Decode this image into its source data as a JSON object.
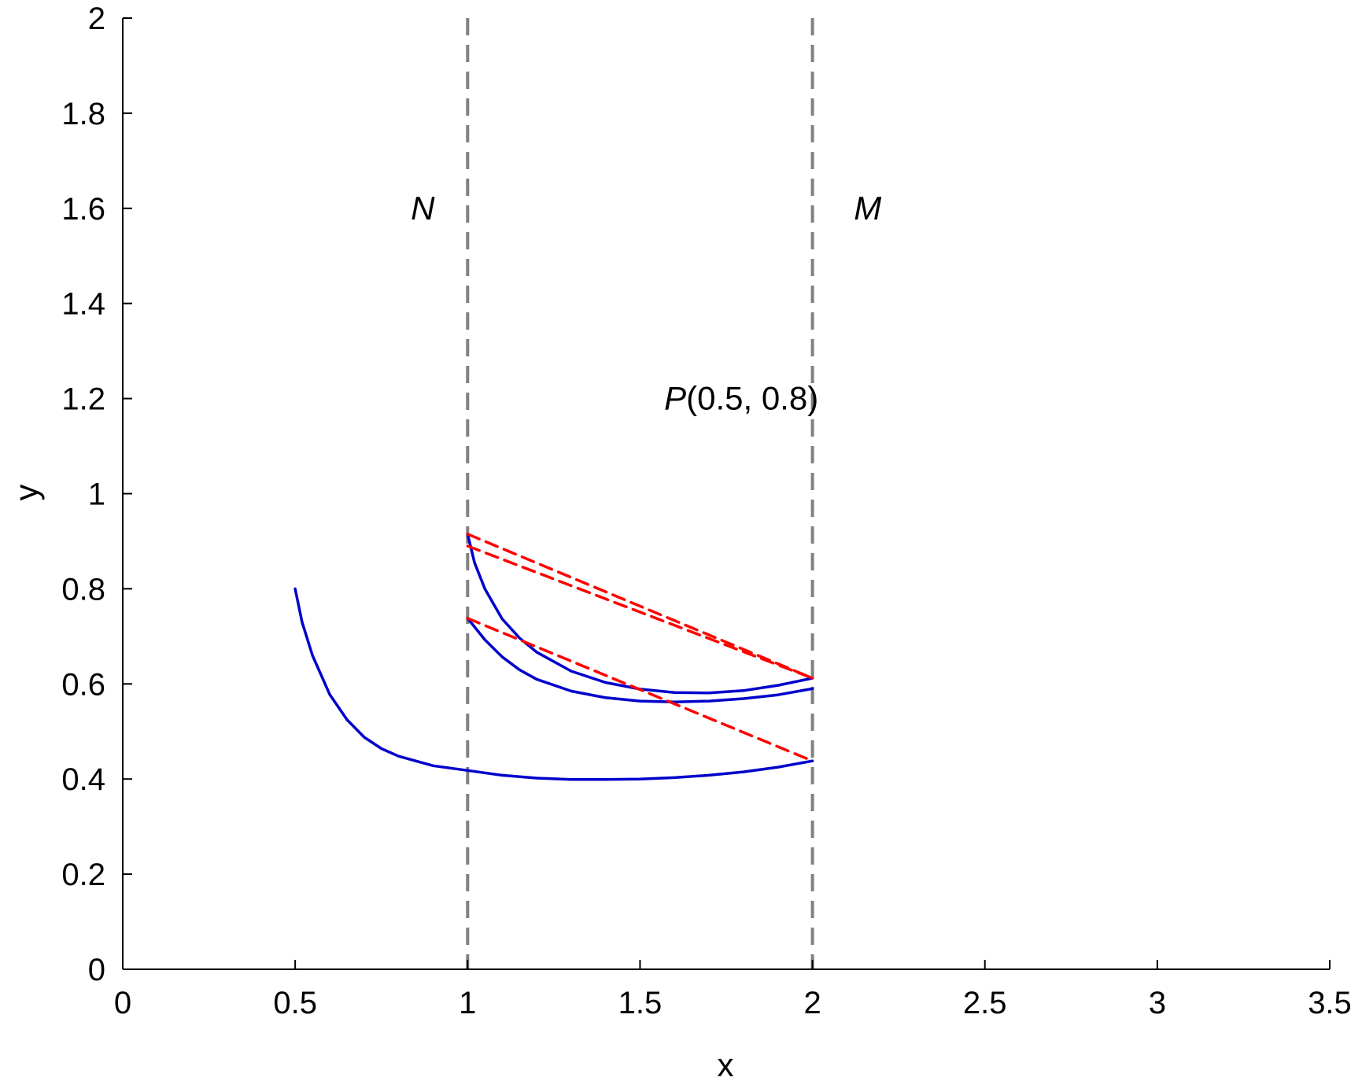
{
  "chart_data": {
    "type": "line",
    "title": "",
    "xlabel": "x",
    "ylabel": "y",
    "xlim": [
      0,
      3.5
    ],
    "ylim": [
      0,
      2
    ],
    "grid": false,
    "xticks": [
      "0",
      "0.5",
      "1",
      "1.5",
      "2",
      "2.5",
      "3",
      "3.5"
    ],
    "yticks": [
      "0",
      "0.2",
      "0.4",
      "0.6",
      "0.8",
      "1",
      "1.2",
      "1.4",
      "1.6",
      "1.8",
      "2"
    ],
    "colors": {
      "curve": "#0000cc",
      "dashed": "#ff0000",
      "boundary": "#808080"
    },
    "boundaries": [
      {
        "name": "N",
        "x": 1,
        "label": "N",
        "label_x": 0.87,
        "label_y": 1.6
      },
      {
        "name": "M",
        "x": 2,
        "label": "M",
        "label_x": 2.16,
        "label_y": 1.6
      }
    ],
    "annotation": {
      "italic": "P",
      "rest": "(0.5, 0.8)",
      "x": 1.57,
      "y": 1.2
    },
    "series": [
      {
        "style": "solid",
        "x": [
          0.5,
          0.52,
          0.55,
          0.6,
          0.65,
          0.7,
          0.75,
          0.8,
          0.9,
          1.0,
          1.1,
          1.2,
          1.3,
          1.4,
          1.5,
          1.6,
          1.7,
          1.8,
          1.9,
          2.0
        ],
        "y": [
          0.8,
          0.73,
          0.66,
          0.578,
          0.525,
          0.488,
          0.464,
          0.448,
          0.428,
          0.418,
          0.408,
          0.402,
          0.399,
          0.399,
          0.4,
          0.403,
          0.408,
          0.415,
          0.425,
          0.438
        ]
      },
      {
        "style": "solid",
        "x": [
          1.0,
          1.02,
          1.05,
          1.1,
          1.15,
          1.2,
          1.3,
          1.4,
          1.5,
          1.6,
          1.7,
          1.8,
          1.9,
          2.0
        ],
        "y": [
          0.915,
          0.855,
          0.8,
          0.737,
          0.697,
          0.667,
          0.627,
          0.603,
          0.589,
          0.582,
          0.581,
          0.586,
          0.597,
          0.612
        ]
      },
      {
        "style": "solid",
        "x": [
          1.0,
          1.05,
          1.1,
          1.15,
          1.2,
          1.3,
          1.4,
          1.5,
          1.6,
          1.7,
          1.8,
          1.9,
          2.0
        ],
        "y": [
          0.738,
          0.693,
          0.657,
          0.63,
          0.61,
          0.585,
          0.571,
          0.564,
          0.562,
          0.564,
          0.569,
          0.577,
          0.59
        ]
      },
      {
        "style": "dashed",
        "x": [
          1.0,
          2.0
        ],
        "y": [
          0.915,
          0.612
        ]
      },
      {
        "style": "dashed",
        "x": [
          1.0,
          2.0
        ],
        "y": [
          0.89,
          0.612
        ]
      },
      {
        "style": "dashed",
        "x": [
          1.0,
          2.0
        ],
        "y": [
          0.738,
          0.438
        ]
      }
    ]
  }
}
